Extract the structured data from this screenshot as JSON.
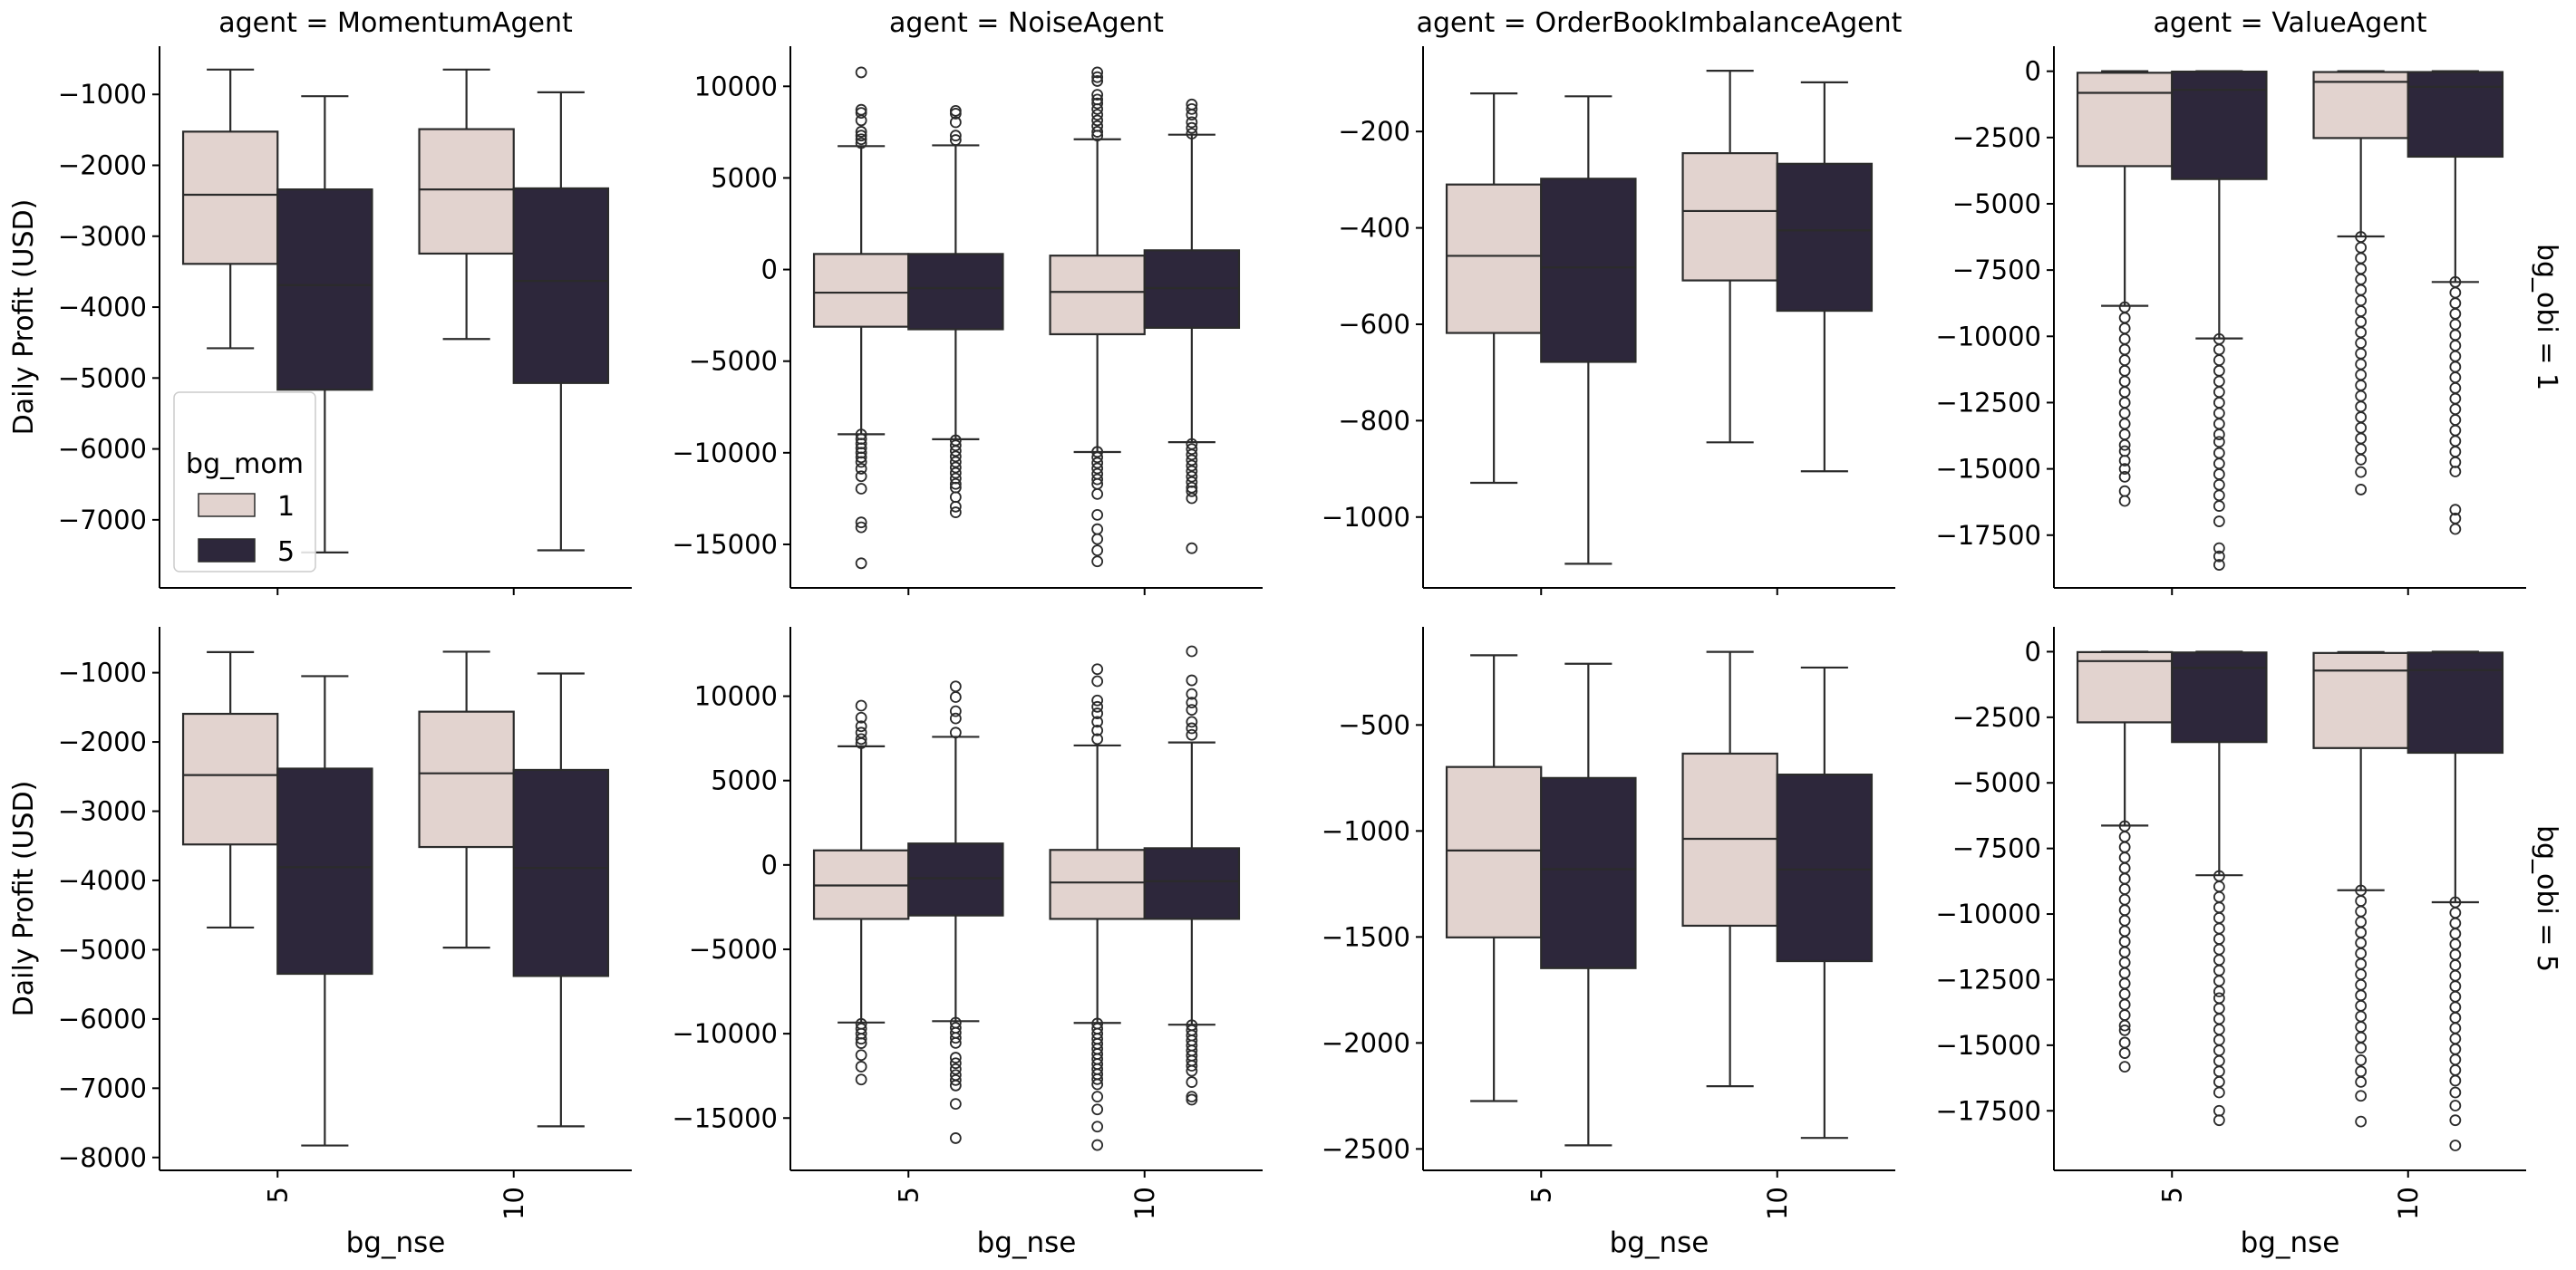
{
  "chart_data": {
    "type": "box",
    "layout": "facet-grid 2 rows x 4 columns",
    "xlabel": "bg_nse",
    "ylabel": "Daily Profit (USD)",
    "categories": [
      "5",
      "10"
    ],
    "hue_title": "bg_mom",
    "hue_levels": [
      "1",
      "5"
    ],
    "colors": {
      "1": "#e2d3cf",
      "5": "#2d273b",
      "line": "#2b2b2b"
    },
    "legend": {
      "placement": "lower-left of first panel",
      "title": "bg_mom",
      "entries": [
        "1",
        "5"
      ]
    },
    "row_labels": [
      "bg_obi = 1",
      "bg_obi = 5"
    ],
    "col_titles": [
      "agent = MomentumAgent",
      "agent = NoiseAgent",
      "agent = OrderBookImbalanceAgent",
      "agent = ValueAgent"
    ],
    "grid": false,
    "panels": [
      {
        "agent": "MomentumAgent",
        "bg_obi": "1",
        "ylim": [
          -7960,
          -320
        ],
        "yticks": [
          -1000,
          -2000,
          -3000,
          -4000,
          -5000,
          -6000,
          -7000
        ],
        "ytick_labels": [
          "−1000",
          "−2000",
          "−3000",
          "−4000",
          "−5000",
          "−6000",
          "−7000"
        ],
        "boxes": [
          {
            "bg_nse": "5",
            "bg_mom": "1",
            "stats": [
              -4580,
              -3390,
              -2415,
              -1525,
              -650
            ],
            "outliers": []
          },
          {
            "bg_nse": "5",
            "bg_mom": "5",
            "stats": [
              -7460,
              -5165,
              -3690,
              -2340,
              -1025
            ],
            "outliers": []
          },
          {
            "bg_nse": "10",
            "bg_mom": "1",
            "stats": [
              -4450,
              -3245,
              -2340,
              -1490,
              -650
            ],
            "outliers": []
          },
          {
            "bg_nse": "10",
            "bg_mom": "5",
            "stats": [
              -7430,
              -5070,
              -3630,
              -2325,
              -970
            ],
            "outliers": []
          }
        ]
      },
      {
        "agent": "NoiseAgent",
        "bg_obi": "1",
        "ylim": [
          -17375,
          12190
        ],
        "yticks": [
          10000,
          5000,
          0,
          -5000,
          -10000,
          -15000
        ],
        "ytick_labels": [
          "10000",
          "5000",
          "0",
          "−5000",
          "−10000",
          "−15000"
        ],
        "boxes": [
          {
            "bg_nse": "5",
            "bg_mom": "1",
            "stats": [
              -8990,
              -3120,
              -1260,
              850,
              6735
            ],
            "outliers": [
              10760,
              8720,
              8550,
              8140,
              7520,
              7310,
              7110,
              6900,
              -9000,
              -9250,
              -9500,
              -9750,
              -10000,
              -10250,
              -10500,
              -10870,
              -11280,
              -11960,
              -13800,
              -14070,
              -16030
            ]
          },
          {
            "bg_nse": "5",
            "bg_mom": "5",
            "stats": [
              -9260,
              -3260,
              -1010,
              850,
              6780
            ],
            "outliers": [
              8660,
              8510,
              8040,
              7310,
              7070,
              -9320,
              -9600,
              -9900,
              -10200,
              -10500,
              -10800,
              -11100,
              -11400,
              -11700,
              -11900,
              -12420,
              -12940,
              -13250
            ]
          },
          {
            "bg_nse": "10",
            "bg_mom": "1",
            "stats": [
              -9960,
              -3530,
              -1220,
              760,
              7110
            ],
            "outliers": [
              10760,
              10500,
              10290,
              9540,
              9280,
              9070,
              8760,
              8450,
              8140,
              7830,
              7520,
              7310,
              -9950,
              -10250,
              -10550,
              -10850,
              -11150,
              -11450,
              -11700,
              -12250,
              -13390,
              -14170,
              -14710,
              -15330,
              -15930
            ]
          },
          {
            "bg_nse": "10",
            "bg_mom": "5",
            "stats": [
              -9420,
              -3180,
              -1010,
              1050,
              7360
            ],
            "outliers": [
              9010,
              8760,
              8450,
              8040,
              7730,
              7420,
              -9520,
              -9800,
              -10100,
              -10400,
              -10700,
              -11000,
              -11300,
              -11600,
              -11900,
              -12100,
              -12480,
              -15210
            ]
          }
        ]
      },
      {
        "agent": "OrderBookImbalanceAgent",
        "bg_obi": "1",
        "ylim": [
          -1147,
          -23
        ],
        "yticks": [
          -200,
          -400,
          -600,
          -800,
          -1000
        ],
        "ytick_labels": [
          "−200",
          "−400",
          "−600",
          "−800",
          "−1000"
        ],
        "boxes": [
          {
            "bg_nse": "5",
            "bg_mom": "1",
            "stats": [
              -929,
              -618,
              -458,
              -310,
              -121
            ],
            "outliers": []
          },
          {
            "bg_nse": "5",
            "bg_mom": "5",
            "stats": [
              -1097,
              -678,
              -482,
              -298,
              -127
            ],
            "outliers": []
          },
          {
            "bg_nse": "10",
            "bg_mom": "1",
            "stats": [
              -845,
              -509,
              -365,
              -245,
              -74
            ],
            "outliers": []
          },
          {
            "bg_nse": "10",
            "bg_mom": "5",
            "stats": [
              -905,
              -572,
              -405,
              -267,
              -98
            ],
            "outliers": []
          }
        ]
      },
      {
        "agent": "ValueAgent",
        "bg_obi": "1",
        "ylim": [
          -19490,
          945
        ],
        "yticks": [
          0,
          -2500,
          -5000,
          -7500,
          -10000,
          -12500,
          -15000,
          -17500
        ],
        "ytick_labels": [
          "0",
          "−2500",
          "−5000",
          "−7500",
          "−10000",
          "−12500",
          "−15000",
          "−17500"
        ],
        "boxes": [
          {
            "bg_nse": "5",
            "bg_mom": "1",
            "stats": [
              -8850,
              -3580,
              -816,
              -57,
              0
            ],
            "outliers": [
              -8900,
              -9300,
              -9700,
              -10100,
              -10500,
              -10900,
              -11300,
              -11700,
              -12100,
              -12500,
              -12900,
              -13300,
              -13700,
              -14100,
              -14330,
              -14690,
              -15000,
              -15300,
              -15840,
              -16210
            ]
          },
          {
            "bg_nse": "5",
            "bg_mom": "5",
            "stats": [
              -10080,
              -4067,
              -700,
              -14,
              0
            ],
            "outliers": [
              -10100,
              -10500,
              -10900,
              -11300,
              -11700,
              -12100,
              -12500,
              -12900,
              -13300,
              -13700,
              -13980,
              -14400,
              -14800,
              -15200,
              -15600,
              -16000,
              -16400,
              -16980,
              -17990,
              -18300,
              -18620
            ]
          },
          {
            "bg_nse": "10",
            "bg_mom": "1",
            "stats": [
              -6230,
              -2520,
              -400,
              -30,
              0
            ],
            "outliers": [
              -6250,
              -6650,
              -7050,
              -7450,
              -7850,
              -8250,
              -8650,
              -9050,
              -9450,
              -9850,
              -10250,
              -10650,
              -11050,
              -11450,
              -11850,
              -12250,
              -12650,
              -13050,
              -13450,
              -13850,
              -14250,
              -14650,
              -15120,
              -15780
            ]
          },
          {
            "bg_nse": "10",
            "bg_mom": "5",
            "stats": [
              -7950,
              -3222,
              -587,
              -30,
              0
            ],
            "outliers": [
              -7950,
              -8350,
              -8750,
              -9150,
              -9550,
              -9950,
              -10350,
              -10750,
              -11150,
              -11550,
              -11950,
              -12350,
              -12750,
              -13150,
              -13550,
              -13950,
              -14350,
              -14750,
              -15100,
              -16540,
              -16870,
              -17270
            ]
          }
        ]
      },
      {
        "agent": "MomentumAgent",
        "bg_obi": "5",
        "ylim": [
          -8186,
          -338
        ],
        "yticks": [
          -1000,
          -2000,
          -3000,
          -4000,
          -5000,
          -6000,
          -7000,
          -8000
        ],
        "ytick_labels": [
          "−1000",
          "−2000",
          "−3000",
          "−4000",
          "−5000",
          "−6000",
          "−7000",
          "−8000"
        ],
        "boxes": [
          {
            "bg_nse": "5",
            "bg_mom": "1",
            "stats": [
              -4680,
              -3480,
              -2478,
              -1594,
              -703
            ],
            "outliers": []
          },
          {
            "bg_nse": "5",
            "bg_mom": "5",
            "stats": [
              -7827,
              -5348,
              -3808,
              -2385,
              -1050
            ],
            "outliers": []
          },
          {
            "bg_nse": "10",
            "bg_mom": "1",
            "stats": [
              -4970,
              -3517,
              -2453,
              -1563,
              -697
            ],
            "outliers": []
          },
          {
            "bg_nse": "10",
            "bg_mom": "5",
            "stats": [
              -7550,
              -5379,
              -3820,
              -2404,
              -1012
            ],
            "outliers": []
          }
        ]
      },
      {
        "agent": "NoiseAgent",
        "bg_obi": "5",
        "ylim": [
          -18100,
          14110
        ],
        "yticks": [
          10000,
          5000,
          0,
          -5000,
          -10000,
          -15000
        ],
        "ytick_labels": [
          "10000",
          "5000",
          "0",
          "−5000",
          "−10000",
          "−15000"
        ],
        "boxes": [
          {
            "bg_nse": "5",
            "bg_mom": "1",
            "stats": [
              -9340,
              -3198,
              -1218,
              863,
              7030
            ],
            "outliers": [
              9440,
              8730,
              8220,
              7840,
              7460,
              7210,
              -9420,
              -9700,
              -10000,
              -10300,
              -10560,
              -11270,
              -11950,
              -12720
            ]
          },
          {
            "bg_nse": "5",
            "bg_mom": "5",
            "stats": [
              -9260,
              -2995,
              -787,
              1270,
              7590
            ],
            "outliers": [
              10580,
              9950,
              9110,
              8680,
              7840,
              -9350,
              -9650,
              -9950,
              -10250,
              -10550,
              -11420,
              -11750,
              -12100,
              -12450,
              -12750,
              -13070,
              -14160,
              -16190
            ]
          },
          {
            "bg_nse": "10",
            "bg_mom": "1",
            "stats": [
              -9365,
              -3198,
              -1040,
              890,
              7080
            ],
            "outliers": [
              11600,
              10890,
              9750,
              9370,
              8980,
              8480,
              7970,
              7460,
              -9400,
              -9700,
              -10000,
              -10300,
              -10600,
              -10900,
              -11200,
              -11500,
              -11800,
              -12100,
              -12400,
              -12700,
              -13000,
              -13730,
              -14490,
              -15510,
              -16600
            ]
          },
          {
            "bg_nse": "10",
            "bg_mom": "5",
            "stats": [
              -9467,
              -3198,
              -964,
              990,
              7260
            ],
            "outliers": [
              12660,
              10940,
              10130,
              9620,
              9190,
              8480,
              8100,
              7710,
              -9500,
              -9800,
              -10100,
              -10400,
              -10700,
              -11000,
              -11300,
              -11600,
              -11900,
              -12200,
              -12870,
              -13730,
              -13910
            ]
          }
        ]
      },
      {
        "agent": "OrderBookImbalanceAgent",
        "bg_obi": "5",
        "ylim": [
          -2601,
          -37
        ],
        "yticks": [
          -500,
          -1000,
          -1500,
          -2000,
          -2500
        ],
        "ytick_labels": [
          "−500",
          "−1000",
          "−1500",
          "−2000",
          "−2500"
        ],
        "boxes": [
          {
            "bg_nse": "5",
            "bg_mom": "1",
            "stats": [
              -2274,
              -1502,
              -1092,
              -698,
              -171
            ],
            "outliers": []
          },
          {
            "bg_nse": "5",
            "bg_mom": "5",
            "stats": [
              -2483,
              -1647,
              -1180,
              -750,
              -211
            ],
            "outliers": []
          },
          {
            "bg_nse": "10",
            "bg_mom": "1",
            "stats": [
              -2204,
              -1447,
              -1037,
              -635,
              -155
            ],
            "outliers": []
          },
          {
            "bg_nse": "10",
            "bg_mom": "5",
            "stats": [
              -2448,
              -1614,
              -1182,
              -734,
              -229
            ],
            "outliers": []
          }
        ]
      },
      {
        "agent": "ValueAgent",
        "bg_obi": "5",
        "ylim": [
          -19770,
          947
        ],
        "yticks": [
          0,
          -2500,
          -5000,
          -7500,
          -10000,
          -12500,
          -15000,
          -17500
        ],
        "ytick_labels": [
          "0",
          "−2500",
          "−5000",
          "−7500",
          "−10000",
          "−12500",
          "−15000",
          "−17500"
        ],
        "boxes": [
          {
            "bg_nse": "5",
            "bg_mom": "1",
            "stats": [
              -6627,
              -2693,
              -359,
              -16,
              0
            ],
            "outliers": [
              -6650,
              -7050,
              -7450,
              -7850,
              -8250,
              -8650,
              -9050,
              -9450,
              -9850,
              -10250,
              -10650,
              -11050,
              -11450,
              -11850,
              -12250,
              -12650,
              -13050,
              -13450,
              -13850,
              -14250,
              -14430,
              -14900,
              -15300,
              -15820
            ]
          },
          {
            "bg_nse": "5",
            "bg_mom": "5",
            "stats": [
              -8520,
              -3444,
              -620,
              -30,
              0
            ],
            "outliers": [
              -8550,
              -8950,
              -9350,
              -9750,
              -10150,
              -10550,
              -10950,
              -11350,
              -11750,
              -12150,
              -12550,
              -12950,
              -13206,
              -13600,
              -14000,
              -14400,
              -14800,
              -15200,
              -15600,
              -16000,
              -16400,
              -16800,
              -17500,
              -17860
            ]
          },
          {
            "bg_nse": "10",
            "bg_mom": "1",
            "stats": [
              -9092,
              -3673,
              -718,
              -49,
              -16
            ],
            "outliers": [
              -9100,
              -9500,
              -9900,
              -10300,
              -10700,
              -11100,
              -11500,
              -11900,
              -12300,
              -12700,
              -13100,
              -13500,
              -13900,
              -14300,
              -14700,
              -15100,
              -15570,
              -16000,
              -16400,
              -16930,
              -17910
            ]
          },
          {
            "bg_nse": "10",
            "bg_mom": "5",
            "stats": [
              -9550,
              -3852,
              -702,
              -33,
              0
            ],
            "outliers": [
              -9550,
              -9950,
              -10350,
              -10750,
              -11150,
              -11550,
              -11950,
              -12350,
              -12750,
              -13150,
              -13550,
              -13950,
              -14350,
              -14750,
              -15150,
              -15550,
              -15950,
              -16350,
              -16800,
              -17300,
              -17860,
              -18820
            ]
          }
        ]
      }
    ]
  }
}
